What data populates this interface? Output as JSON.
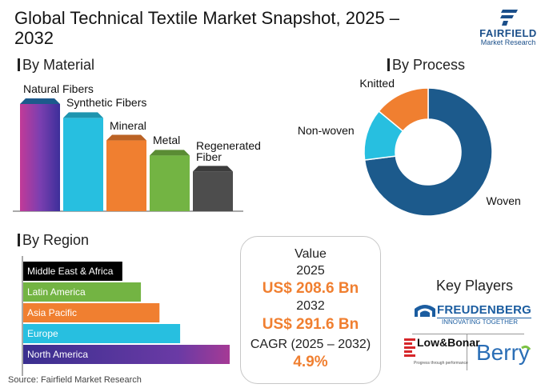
{
  "title": "Global Technical Textile Market Snapshot, 2025 – 2032",
  "brand": {
    "name": "FAIRFIELD",
    "sub": "Market Research",
    "color": "#1b4f8a"
  },
  "sections": {
    "material": "By Material",
    "process": "By Process",
    "region": "By Region"
  },
  "colors": {
    "accent_orange": "#f07f30",
    "navy": "#1c5a8c",
    "cyan": "#27bfe0",
    "green": "#73b443",
    "gray": "#4d4d4d",
    "purple": "#6a3aa5",
    "black": "#000000"
  },
  "chart_data": [
    {
      "type": "bar",
      "title": "By Material",
      "categories": [
        "Natural Fibers",
        "Synthetic Fibers",
        "Mineral",
        "Metal",
        "Regenerated Fiber"
      ],
      "values": [
        100,
        87,
        66,
        52,
        37
      ],
      "colors": [
        "#7b3fb0",
        "#27bfe0",
        "#f07f30",
        "#73b443",
        "#4d4d4d"
      ],
      "axis_labels": "none"
    },
    {
      "type": "pie",
      "title": "By Process",
      "categories": [
        "Woven",
        "Non-woven",
        "Knitted"
      ],
      "values": [
        73,
        13,
        14
      ],
      "colors": [
        "#1c5a8c",
        "#27bfe0",
        "#f07f30"
      ],
      "hole": "donut"
    },
    {
      "type": "bar",
      "orientation": "horizontal",
      "title": "By Region",
      "categories": [
        "Middle East & Africa",
        "Latin America",
        "Asia Pacific",
        "Europe",
        "North America"
      ],
      "values": [
        48,
        57,
        66,
        76,
        100
      ],
      "colors": [
        "#000000",
        "#73b443",
        "#f07f30",
        "#27bfe0",
        "#6a3aa5"
      ],
      "axis_labels": "none"
    }
  ],
  "value_box": {
    "heading": "Value",
    "year1": "2025",
    "amount1": "US$ 208.6 Bn",
    "year2": "2032",
    "amount2": "US$ 291.6 Bn",
    "cagr_label": "CAGR (2025 – 2032)",
    "cagr_value": "4.9%"
  },
  "key_players": {
    "title": "Key Players",
    "companies": [
      {
        "name": "FREUDENBERG",
        "tagline": "INNOVATING TOGETHER"
      },
      {
        "name": "Low&Bonar",
        "tagline": "Progress through performance"
      },
      {
        "name": "Berry",
        "tagline": ""
      }
    ]
  },
  "source": "Source: Fairfield Market Research"
}
